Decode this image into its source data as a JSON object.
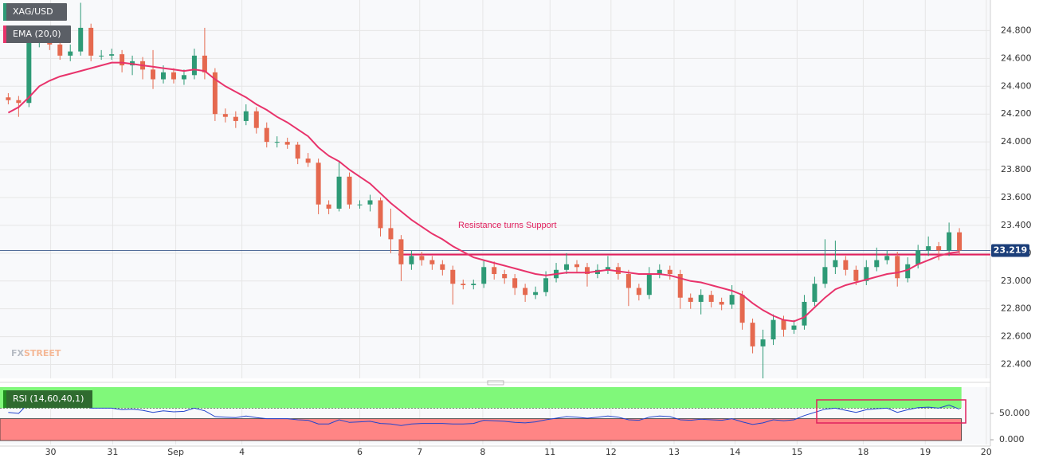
{
  "chart_data": [
    {
      "type": "candlestick",
      "name": "XAG/USD",
      "up_color": "#2e9a76",
      "down_color": "#e5694f",
      "open": [
        24.32,
        24.3,
        24.28,
        24.72,
        24.75,
        24.7,
        24.62,
        24.65,
        24.82,
        24.62,
        24.62,
        24.63,
        24.55,
        24.58,
        24.52,
        24.45,
        24.5,
        24.45,
        24.48,
        24.62,
        24.5,
        24.2,
        24.18,
        24.15,
        24.22,
        24.1,
        24.0,
        24.0,
        23.98,
        23.88,
        23.85,
        23.55,
        23.52,
        23.75,
        23.55,
        23.55,
        23.58,
        23.38,
        23.3,
        23.12,
        23.18,
        23.15,
        23.12,
        23.08,
        22.98,
        22.97,
        22.98,
        23.1,
        23.05,
        23.02,
        22.95,
        22.9,
        22.92,
        23.02,
        23.08,
        23.12,
        23.1,
        23.05,
        23.08,
        23.1,
        23.05,
        22.95,
        22.9,
        23.05,
        23.08,
        23.05,
        22.88,
        22.85,
        22.9,
        22.85,
        22.83,
        22.9,
        22.7,
        22.53,
        22.58,
        22.72,
        22.65,
        22.68,
        22.85,
        22.98,
        23.1,
        23.15,
        23.08,
        23.0,
        23.1,
        23.15,
        23.18,
        23.02,
        23.12,
        23.22,
        23.25,
        23.22,
        23.35
      ],
      "high": [
        24.35,
        24.33,
        24.78,
        24.8,
        24.78,
        24.73,
        24.7,
        25.0,
        24.85,
        24.66,
        24.67,
        24.66,
        24.62,
        24.61,
        24.66,
        24.55,
        24.53,
        24.52,
        24.67,
        24.82,
        24.53,
        24.24,
        24.22,
        24.27,
        24.25,
        24.14,
        24.04,
        24.03,
        24.0,
        23.92,
        23.88,
        23.58,
        23.86,
        23.78,
        23.58,
        23.62,
        23.6,
        23.52,
        23.33,
        23.22,
        23.21,
        23.18,
        23.15,
        23.11,
        23.01,
        23.01,
        23.15,
        23.14,
        23.08,
        23.05,
        22.98,
        22.96,
        23.07,
        23.13,
        23.2,
        23.15,
        23.13,
        23.12,
        23.18,
        23.13,
        23.08,
        22.98,
        23.1,
        23.12,
        23.11,
        23.08,
        22.91,
        22.94,
        22.93,
        22.88,
        22.97,
        22.93,
        22.73,
        22.65,
        22.76,
        22.75,
        22.72,
        22.9,
        23.03,
        23.3,
        23.29,
        23.18,
        23.11,
        23.15,
        23.24,
        23.22,
        23.21,
        23.17,
        23.26,
        23.32,
        23.28,
        23.42,
        23.38
      ],
      "low": [
        24.27,
        24.18,
        24.25,
        24.68,
        24.66,
        24.59,
        24.58,
        24.62,
        24.58,
        24.59,
        24.59,
        24.5,
        24.48,
        24.45,
        24.38,
        24.42,
        24.42,
        24.41,
        24.45,
        24.45,
        24.15,
        24.14,
        24.1,
        24.12,
        24.06,
        23.96,
        23.96,
        23.95,
        23.84,
        23.82,
        23.48,
        23.48,
        23.5,
        23.52,
        23.52,
        23.5,
        23.32,
        23.2,
        23.0,
        23.08,
        23.11,
        23.08,
        23.04,
        22.83,
        22.94,
        22.94,
        22.95,
        23.01,
        22.98,
        22.9,
        22.85,
        22.87,
        22.89,
        22.99,
        23.05,
        23.06,
        22.96,
        23.02,
        23.05,
        23.01,
        22.82,
        22.86,
        22.87,
        23.02,
        23.01,
        22.8,
        22.8,
        22.76,
        22.81,
        22.79,
        22.8,
        22.65,
        22.48,
        22.3,
        22.54,
        22.6,
        22.62,
        22.65,
        22.82,
        22.95,
        23.05,
        23.04,
        22.97,
        22.97,
        23.07,
        23.12,
        22.96,
        22.99,
        23.09,
        23.18,
        23.15,
        23.18,
        23.19
      ],
      "close": [
        24.3,
        24.28,
        24.72,
        24.75,
        24.7,
        24.62,
        24.65,
        24.82,
        24.62,
        24.62,
        24.63,
        24.55,
        24.58,
        24.52,
        24.45,
        24.5,
        24.45,
        24.48,
        24.62,
        24.5,
        24.2,
        24.18,
        24.15,
        24.22,
        24.1,
        24.0,
        24.0,
        23.98,
        23.88,
        23.85,
        23.55,
        23.52,
        23.75,
        23.55,
        23.55,
        23.58,
        23.38,
        23.3,
        23.12,
        23.18,
        23.15,
        23.12,
        23.08,
        22.98,
        22.97,
        22.98,
        23.1,
        23.05,
        23.02,
        22.95,
        22.9,
        22.92,
        23.02,
        23.08,
        23.12,
        23.1,
        23.05,
        23.08,
        23.1,
        23.05,
        22.95,
        22.9,
        23.05,
        23.08,
        23.05,
        22.88,
        22.85,
        22.9,
        22.85,
        22.83,
        22.9,
        22.7,
        22.53,
        22.58,
        22.72,
        22.65,
        22.68,
        22.85,
        22.98,
        23.1,
        23.15,
        23.08,
        23.0,
        23.1,
        23.15,
        23.18,
        23.02,
        23.12,
        23.22,
        23.25,
        23.22,
        23.35,
        23.22
      ],
      "ema": {
        "name": "EMA (20,0)",
        "color": "#e8336b",
        "values": [
          24.21,
          24.25,
          24.32,
          24.4,
          24.44,
          24.47,
          24.49,
          24.51,
          24.53,
          24.55,
          24.57,
          24.57,
          24.56,
          24.55,
          24.54,
          24.53,
          24.52,
          24.51,
          24.52,
          24.51,
          24.45,
          24.4,
          24.36,
          24.32,
          24.27,
          24.23,
          24.18,
          24.14,
          24.09,
          24.04,
          23.96,
          23.9,
          23.86,
          23.8,
          23.75,
          23.7,
          23.63,
          23.56,
          23.5,
          23.44,
          23.39,
          23.34,
          23.3,
          23.25,
          23.21,
          23.17,
          23.15,
          23.13,
          23.11,
          23.09,
          23.07,
          23.05,
          23.04,
          23.05,
          23.06,
          23.06,
          23.06,
          23.07,
          23.08,
          23.07,
          23.06,
          23.05,
          23.05,
          23.05,
          23.04,
          23.02,
          23.0,
          22.99,
          22.97,
          22.95,
          22.93,
          22.9,
          22.84,
          22.79,
          22.75,
          22.72,
          22.71,
          22.74,
          22.81,
          22.88,
          22.94,
          22.97,
          22.99,
          23.01,
          23.03,
          23.05,
          23.06,
          23.08,
          23.12,
          23.15,
          23.18,
          23.2,
          23.21
        ]
      },
      "price_line": {
        "value": 23.219,
        "color": "#1c3f7a"
      },
      "annotation": {
        "text": "Resistance turns Support",
        "value": 23.19,
        "color": "#e0205e"
      },
      "watermark": [
        "FX",
        "STREET"
      ],
      "xlim": [
        -0.8,
        95
      ],
      "ylim": [
        22.3,
        25.02
      ],
      "yticks": [
        {
          "value": 22.4,
          "label": "22.400"
        },
        {
          "value": 22.6,
          "label": "22.600"
        },
        {
          "value": 22.8,
          "label": "22.800"
        },
        {
          "value": 23.0,
          "label": "23.000"
        },
        {
          "value": 23.2,
          "label": "23.200"
        },
        {
          "value": 23.4,
          "label": "23.400"
        },
        {
          "value": 23.6,
          "label": "23.600"
        },
        {
          "value": 23.8,
          "label": "23.800"
        },
        {
          "value": 24.0,
          "label": "24.000"
        },
        {
          "value": 24.2,
          "label": "24.200"
        },
        {
          "value": 24.4,
          "label": "24.400"
        },
        {
          "value": 24.6,
          "label": "24.600"
        },
        {
          "value": 24.8,
          "label": "24.800"
        }
      ],
      "grid": true
    },
    {
      "type": "line",
      "name": "RSI (14,60,40,1)",
      "color": "#2244cc",
      "values": [
        52,
        50,
        70,
        70,
        68,
        62,
        63,
        70,
        60,
        60,
        60,
        57,
        58,
        56,
        52,
        55,
        53,
        54,
        60,
        55,
        44,
        43,
        42,
        45,
        42,
        40,
        40,
        40,
        38,
        37,
        30,
        30,
        38,
        33,
        34,
        35,
        31,
        30,
        27,
        30,
        31,
        31,
        31,
        30,
        30,
        31,
        37,
        36,
        35,
        33,
        32,
        34,
        38,
        41,
        44,
        43,
        41,
        43,
        45,
        43,
        38,
        37,
        43,
        45,
        44,
        38,
        37,
        39,
        38,
        37,
        40,
        34,
        29,
        32,
        38,
        36,
        38,
        46,
        52,
        58,
        60,
        56,
        52,
        57,
        59,
        60,
        52,
        57,
        61,
        62,
        60,
        66,
        58
      ],
      "upper": 60,
      "lower": 40,
      "upper_color": "#80f87a",
      "lower_color": "#ff8585",
      "xlim": [
        -0.8,
        95
      ],
      "ylim": [
        -9,
        100
      ],
      "yticks": [
        {
          "value": 0,
          "label": "0.000"
        },
        {
          "value": 50,
          "label": "50.000"
        }
      ],
      "xticks": [
        {
          "value": 4.1,
          "label": "30"
        },
        {
          "value": 10.1,
          "label": "31"
        },
        {
          "value": 16.2,
          "label": "Sep"
        },
        {
          "value": 22.6,
          "label": "4"
        },
        {
          "value": 34.0,
          "label": "6"
        },
        {
          "value": 39.8,
          "label": "7"
        },
        {
          "value": 45.9,
          "label": "8"
        },
        {
          "value": 52.4,
          "label": "11"
        },
        {
          "value": 58.3,
          "label": "12"
        },
        {
          "value": 64.4,
          "label": "13"
        },
        {
          "value": 70.3,
          "label": "14"
        },
        {
          "value": 76.3,
          "label": "15"
        },
        {
          "value": 82.7,
          "label": "18"
        },
        {
          "value": 88.7,
          "label": "19"
        },
        {
          "value": 94.6,
          "label": "20"
        }
      ],
      "grid": true
    }
  ]
}
